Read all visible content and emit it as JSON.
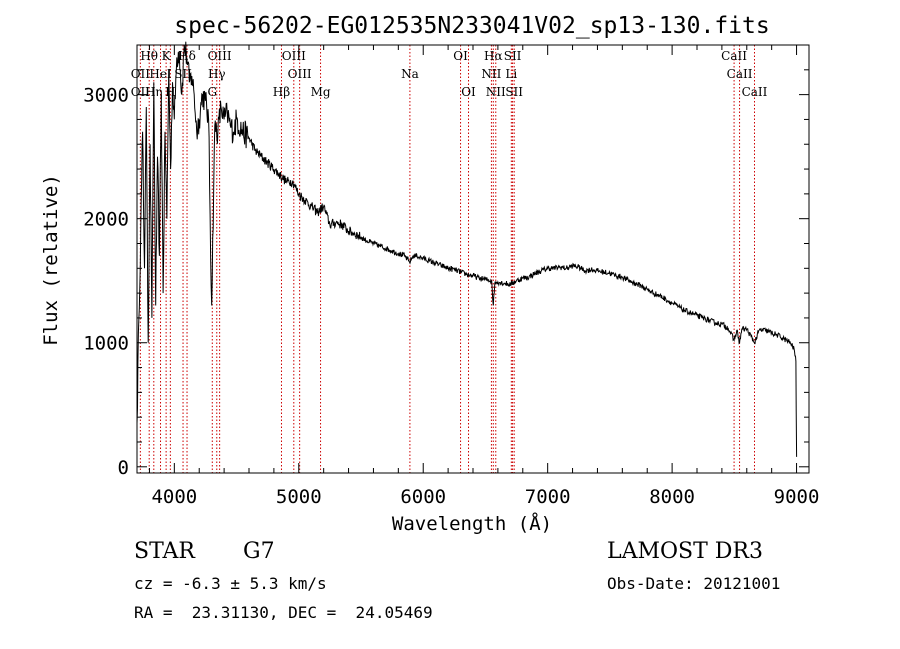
{
  "chart_data": {
    "type": "line",
    "title": "spec-56202-EG012535N233041V02_sp13-130.fits",
    "xlabel": "Wavelength (Å)",
    "ylabel": "Flux (relative)",
    "xlim": [
      3700,
      9100
    ],
    "ylim": [
      -50,
      3400
    ],
    "xticks": [
      4000,
      5000,
      6000,
      7000,
      8000,
      9000
    ],
    "yticks": [
      0,
      1000,
      2000,
      3000
    ],
    "series": [
      {
        "name": "flux",
        "x": [
          3700,
          3715,
          3730,
          3745,
          3760,
          3775,
          3790,
          3805,
          3820,
          3835,
          3850,
          3865,
          3880,
          3895,
          3910,
          3925,
          3940,
          3955,
          3970,
          3985,
          4000,
          4020,
          4040,
          4060,
          4080,
          4100,
          4120,
          4140,
          4160,
          4180,
          4200,
          4225,
          4250,
          4275,
          4300,
          4325,
          4350,
          4375,
          4400,
          4425,
          4450,
          4475,
          4500,
          4550,
          4600,
          4650,
          4700,
          4750,
          4800,
          4850,
          4900,
          4950,
          5000,
          5050,
          5100,
          5150,
          5200,
          5250,
          5300,
          5350,
          5400,
          5450,
          5500,
          5550,
          5600,
          5650,
          5700,
          5750,
          5800,
          5850,
          5890,
          5920,
          5950,
          6000,
          6050,
          6100,
          6150,
          6200,
          6250,
          6300,
          6350,
          6400,
          6450,
          6500,
          6550,
          6563,
          6575,
          6600,
          6650,
          6700,
          6750,
          6800,
          6850,
          6900,
          6950,
          7000,
          7050,
          7100,
          7150,
          7200,
          7250,
          7300,
          7350,
          7400,
          7450,
          7500,
          7550,
          7600,
          7650,
          7700,
          7750,
          7800,
          7850,
          7900,
          7950,
          8000,
          8050,
          8100,
          8150,
          8200,
          8250,
          8300,
          8350,
          8400,
          8450,
          8498,
          8520,
          8542,
          8560,
          8600,
          8662,
          8700,
          8750,
          8800,
          8850,
          8900,
          8950,
          8980,
          8995,
          9000
        ],
        "values": [
          350,
          1200,
          1900,
          2700,
          1600,
          2900,
          1000,
          2600,
          1200,
          3100,
          1300,
          2500,
          1700,
          3000,
          1400,
          2700,
          2000,
          3200,
          2400,
          3100,
          2800,
          3300,
          3350,
          3000,
          3400,
          3300,
          3100,
          3150,
          3000,
          2700,
          2800,
          3000,
          2950,
          2800,
          1300,
          2750,
          2700,
          2900,
          2800,
          2850,
          2750,
          2700,
          2800,
          2700,
          2650,
          2550,
          2500,
          2450,
          2400,
          2350,
          2300,
          2300,
          2200,
          2150,
          2100,
          2050,
          2100,
          1950,
          1970,
          1950,
          1900,
          1880,
          1850,
          1820,
          1800,
          1780,
          1760,
          1740,
          1720,
          1700,
          1650,
          1700,
          1700,
          1680,
          1660,
          1640,
          1620,
          1600,
          1590,
          1570,
          1550,
          1540,
          1520,
          1510,
          1500,
          1300,
          1480,
          1490,
          1480,
          1470,
          1500,
          1520,
          1530,
          1560,
          1580,
          1600,
          1600,
          1610,
          1600,
          1620,
          1610,
          1580,
          1590,
          1580,
          1570,
          1560,
          1540,
          1530,
          1500,
          1480,
          1460,
          1430,
          1400,
          1380,
          1350,
          1320,
          1290,
          1260,
          1240,
          1220,
          1200,
          1180,
          1160,
          1150,
          1120,
          1020,
          1100,
          1000,
          1110,
          1110,
          1000,
          1100,
          1100,
          1080,
          1060,
          1030,
          1000,
          950,
          850,
          80
        ]
      }
    ],
    "emission_lines": [
      {
        "label": "Hθ",
        "wavelength": 3798,
        "row": 1
      },
      {
        "label": "K",
        "wavelength": 3934,
        "row": 1
      },
      {
        "label": "Hδ",
        "wavelength": 4102,
        "row": 1
      },
      {
        "label": "OIII",
        "wavelength": 4364,
        "row": 1
      },
      {
        "label": "OIII",
        "wavelength": 4960,
        "row": 1
      },
      {
        "label": "OI",
        "wavelength": 6300,
        "row": 1
      },
      {
        "label": "Hα",
        "wavelength": 6563,
        "row": 1
      },
      {
        "label": "SII",
        "wavelength": 6718,
        "row": 1
      },
      {
        "label": "CaII",
        "wavelength": 8498,
        "row": 1
      },
      {
        "label": "OII",
        "wavelength": 3727,
        "row": 2
      },
      {
        "label": "HeI",
        "wavelength": 3889,
        "row": 2
      },
      {
        "label": "SII",
        "wavelength": 4070,
        "row": 2
      },
      {
        "label": "Hγ",
        "wavelength": 4341,
        "row": 2
      },
      {
        "label": "OIII",
        "wavelength": 5007,
        "row": 2
      },
      {
        "label": "Na",
        "wavelength": 5893,
        "row": 2
      },
      {
        "label": "NII",
        "wavelength": 6548,
        "row": 2
      },
      {
        "label": "Li",
        "wavelength": 6708,
        "row": 2
      },
      {
        "label": "CaII",
        "wavelength": 8542,
        "row": 2
      },
      {
        "label": "OII",
        "wavelength": 3727,
        "row": 3
      },
      {
        "label": "Hη",
        "wavelength": 3835,
        "row": 3
      },
      {
        "label": "H",
        "wavelength": 3968,
        "row": 3
      },
      {
        "label": "G",
        "wavelength": 4305,
        "row": 3
      },
      {
        "label": "Hβ",
        "wavelength": 4861,
        "row": 3
      },
      {
        "label": "Mg",
        "wavelength": 5175,
        "row": 3
      },
      {
        "label": "OI",
        "wavelength": 6364,
        "row": 3
      },
      {
        "label": "NII",
        "wavelength": 6583,
        "row": 3
      },
      {
        "label": "SII",
        "wavelength": 6731,
        "row": 3
      },
      {
        "label": "CaII",
        "wavelength": 8662,
        "row": 3
      }
    ]
  },
  "info": {
    "class": "STAR",
    "subclass": "G7",
    "survey": "LAMOST DR3",
    "cz": "cz = -6.3 ± 5.3 km/s",
    "obsdate": "Obs-Date: 20121001",
    "radec": "RA =  23.31130, DEC =  24.05469"
  },
  "colors": {
    "line": "#cc0000",
    "spectrum": "#000000"
  }
}
